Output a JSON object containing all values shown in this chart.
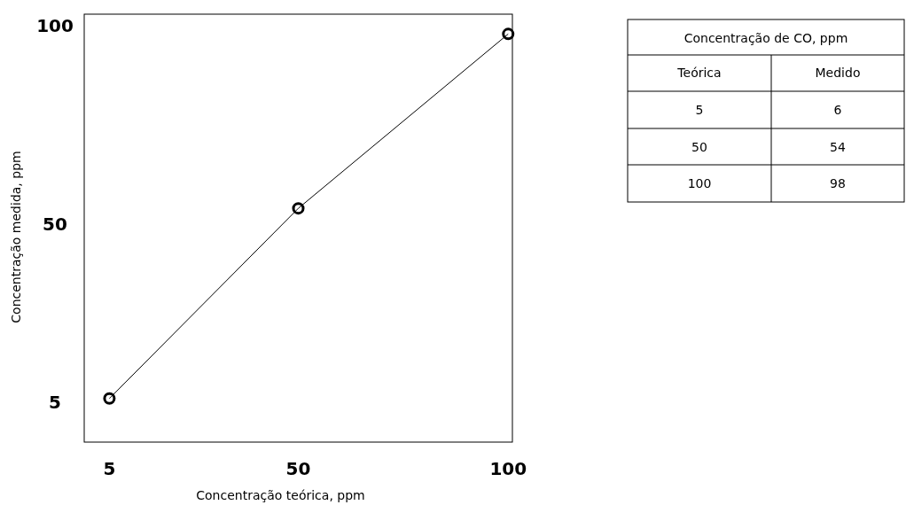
{
  "chart_data": {
    "type": "line",
    "xlabel": "Concentração teórica, ppm",
    "ylabel": "Concentração medida, ppm",
    "x": [
      5,
      50,
      100
    ],
    "series": [
      {
        "color": "#000000",
        "values": [
          6,
          54,
          98
        ]
      }
    ],
    "xlim": [
      -1,
      101
    ],
    "xticks": [
      5,
      50,
      100
    ],
    "ylim": [
      -5,
      103
    ],
    "yticks": [
      5,
      50,
      100
    ],
    "marker": "circle",
    "line_style": "solid",
    "annotations": [
      "Concentração de CO, ppm",
      "Teórica",
      "Medido",
      "5",
      "6",
      "50",
      "54",
      "100",
      "98"
    ]
  }
}
